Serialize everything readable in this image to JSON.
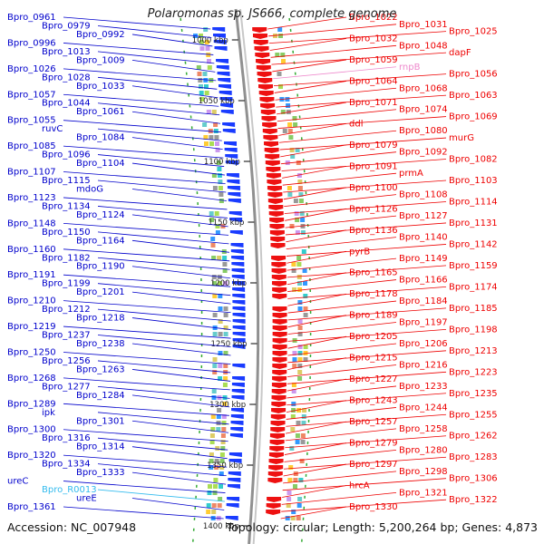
{
  "title": "Polaromonas sp. JS666, complete genome",
  "accession": "Accession: NC_007948",
  "summary": "Topology: circular; Length: 5,200,264 bp; Genes: 4,873",
  "scale_ticks": [
    "1000 kbp",
    "1050 kbp",
    "1100 kbp",
    "1150 kbp",
    "1200 kbp",
    "1250 kbp",
    "1300 kbp",
    "1350 kbp",
    "1400 kbp"
  ],
  "left_labels": [
    {
      "name": "Bpro_0961",
      "color": "#0000cc"
    },
    {
      "name": "Bpro_0979",
      "color": "#0000cc"
    },
    {
      "name": "Bpro_0992",
      "color": "#0000cc"
    },
    {
      "name": "Bpro_0996",
      "color": "#0000cc"
    },
    {
      "name": "Bpro_1013",
      "color": "#0000cc"
    },
    {
      "name": "Bpro_1009",
      "color": "#0000cc"
    },
    {
      "name": "Bpro_1026",
      "color": "#0000cc"
    },
    {
      "name": "Bpro_1028",
      "color": "#0000cc"
    },
    {
      "name": "Bpro_1033",
      "color": "#0000cc"
    },
    {
      "name": "Bpro_1057",
      "color": "#0000cc"
    },
    {
      "name": "Bpro_1044",
      "color": "#0000cc"
    },
    {
      "name": "Bpro_1061",
      "color": "#0000cc"
    },
    {
      "name": "Bpro_1055",
      "color": "#0000cc"
    },
    {
      "name": "ruvC",
      "color": "#0000cc"
    },
    {
      "name": "Bpro_1084",
      "color": "#0000cc"
    },
    {
      "name": "Bpro_1085",
      "color": "#0000cc"
    },
    {
      "name": "Bpro_1096",
      "color": "#0000cc"
    },
    {
      "name": "Bpro_1104",
      "color": "#0000cc"
    },
    {
      "name": "Bpro_1107",
      "color": "#0000cc"
    },
    {
      "name": "Bpro_1115",
      "color": "#0000cc"
    },
    {
      "name": "mdoG",
      "color": "#0000cc"
    },
    {
      "name": "Bpro_1123",
      "color": "#0000cc"
    },
    {
      "name": "Bpro_1134",
      "color": "#0000cc"
    },
    {
      "name": "Bpro_1124",
      "color": "#0000cc"
    },
    {
      "name": "Bpro_1148",
      "color": "#0000cc"
    },
    {
      "name": "Bpro_1150",
      "color": "#0000cc"
    },
    {
      "name": "Bpro_1164",
      "color": "#0000cc"
    },
    {
      "name": "Bpro_1160",
      "color": "#0000cc"
    },
    {
      "name": "Bpro_1182",
      "color": "#0000cc"
    },
    {
      "name": "Bpro_1190",
      "color": "#0000cc"
    },
    {
      "name": "Bpro_1191",
      "color": "#0000cc"
    },
    {
      "name": "Bpro_1199",
      "color": "#0000cc"
    },
    {
      "name": "Bpro_1201",
      "color": "#0000cc"
    },
    {
      "name": "Bpro_1210",
      "color": "#0000cc"
    },
    {
      "name": "Bpro_1212",
      "color": "#0000cc"
    },
    {
      "name": "Bpro_1218",
      "color": "#0000cc"
    },
    {
      "name": "Bpro_1219",
      "color": "#0000cc"
    },
    {
      "name": "Bpro_1237",
      "color": "#0000cc"
    },
    {
      "name": "Bpro_1238",
      "color": "#0000cc"
    },
    {
      "name": "Bpro_1250",
      "color": "#0000cc"
    },
    {
      "name": "Bpro_1256",
      "color": "#0000cc"
    },
    {
      "name": "Bpro_1263",
      "color": "#0000cc"
    },
    {
      "name": "Bpro_1268",
      "color": "#0000cc"
    },
    {
      "name": "Bpro_1277",
      "color": "#0000cc"
    },
    {
      "name": "Bpro_1284",
      "color": "#0000cc"
    },
    {
      "name": "Bpro_1289",
      "color": "#0000cc"
    },
    {
      "name": "ipk",
      "color": "#0000cc"
    },
    {
      "name": "Bpro_1301",
      "color": "#0000cc"
    },
    {
      "name": "Bpro_1300",
      "color": "#0000cc"
    },
    {
      "name": "Bpro_1316",
      "color": "#0000cc"
    },
    {
      "name": "Bpro_1314",
      "color": "#0000cc"
    },
    {
      "name": "Bpro_1320",
      "color": "#0000cc"
    },
    {
      "name": "Bpro_1334",
      "color": "#0000cc"
    },
    {
      "name": "Bpro_1333",
      "color": "#0000cc"
    },
    {
      "name": "ureC",
      "color": "#0000cc"
    },
    {
      "name": "Bpro_R0013",
      "color": "#33bbee"
    },
    {
      "name": "ureE",
      "color": "#0000cc"
    },
    {
      "name": "Bpro_1361",
      "color": "#0000cc"
    }
  ],
  "right_labels": [
    {
      "name": "Bpro_1022",
      "color": "#ee0000"
    },
    {
      "name": "Bpro_1031",
      "color": "#ee0000"
    },
    {
      "name": "Bpro_1025",
      "color": "#ee0000"
    },
    {
      "name": "Bpro_1032",
      "color": "#ee0000"
    },
    {
      "name": "Bpro_1048",
      "color": "#ee0000"
    },
    {
      "name": "dapF",
      "color": "#ee0000"
    },
    {
      "name": "Bpro_1059",
      "color": "#ee0000"
    },
    {
      "name": "rnpB",
      "color": "#ee88cc"
    },
    {
      "name": "Bpro_1056",
      "color": "#ee0000"
    },
    {
      "name": "Bpro_1064",
      "color": "#ee0000"
    },
    {
      "name": "Bpro_1068",
      "color": "#ee0000"
    },
    {
      "name": "Bpro_1063",
      "color": "#ee0000"
    },
    {
      "name": "Bpro_1071",
      "color": "#ee0000"
    },
    {
      "name": "Bpro_1074",
      "color": "#ee0000"
    },
    {
      "name": "Bpro_1069",
      "color": "#ee0000"
    },
    {
      "name": "ddl",
      "color": "#ee0000"
    },
    {
      "name": "Bpro_1080",
      "color": "#ee0000"
    },
    {
      "name": "murG",
      "color": "#ee0000"
    },
    {
      "name": "Bpro_1079",
      "color": "#ee0000"
    },
    {
      "name": "Bpro_1092",
      "color": "#ee0000"
    },
    {
      "name": "Bpro_1082",
      "color": "#ee0000"
    },
    {
      "name": "Bpro_1091",
      "color": "#ee0000"
    },
    {
      "name": "prmA",
      "color": "#ee0000"
    },
    {
      "name": "Bpro_1103",
      "color": "#ee0000"
    },
    {
      "name": "Bpro_1100",
      "color": "#ee0000"
    },
    {
      "name": "Bpro_1108",
      "color": "#ee0000"
    },
    {
      "name": "Bpro_1114",
      "color": "#ee0000"
    },
    {
      "name": "Bpro_1126",
      "color": "#ee0000"
    },
    {
      "name": "Bpro_1127",
      "color": "#ee0000"
    },
    {
      "name": "Bpro_1131",
      "color": "#ee0000"
    },
    {
      "name": "Bpro_1136",
      "color": "#ee0000"
    },
    {
      "name": "Bpro_1140",
      "color": "#ee0000"
    },
    {
      "name": "Bpro_1142",
      "color": "#ee0000"
    },
    {
      "name": "pyrB",
      "color": "#ee0000"
    },
    {
      "name": "Bpro_1149",
      "color": "#ee0000"
    },
    {
      "name": "Bpro_1159",
      "color": "#ee0000"
    },
    {
      "name": "Bpro_1165",
      "color": "#ee0000"
    },
    {
      "name": "Bpro_1166",
      "color": "#ee0000"
    },
    {
      "name": "Bpro_1174",
      "color": "#ee0000"
    },
    {
      "name": "Bpro_1178",
      "color": "#ee0000"
    },
    {
      "name": "Bpro_1184",
      "color": "#ee0000"
    },
    {
      "name": "Bpro_1185",
      "color": "#ee0000"
    },
    {
      "name": "Bpro_1189",
      "color": "#ee0000"
    },
    {
      "name": "Bpro_1197",
      "color": "#ee0000"
    },
    {
      "name": "Bpro_1198",
      "color": "#ee0000"
    },
    {
      "name": "Bpro_1205",
      "color": "#ee0000"
    },
    {
      "name": "Bpro_1206",
      "color": "#ee0000"
    },
    {
      "name": "Bpro_1213",
      "color": "#ee0000"
    },
    {
      "name": "Bpro_1215",
      "color": "#ee0000"
    },
    {
      "name": "Bpro_1216",
      "color": "#ee0000"
    },
    {
      "name": "Bpro_1223",
      "color": "#ee0000"
    },
    {
      "name": "Bpro_1227",
      "color": "#ee0000"
    },
    {
      "name": "Bpro_1233",
      "color": "#ee0000"
    },
    {
      "name": "Bpro_1235",
      "color": "#ee0000"
    },
    {
      "name": "Bpro_1243",
      "color": "#ee0000"
    },
    {
      "name": "Bpro_1244",
      "color": "#ee0000"
    },
    {
      "name": "Bpro_1255",
      "color": "#ee0000"
    },
    {
      "name": "Bpro_1257",
      "color": "#ee0000"
    },
    {
      "name": "Bpro_1258",
      "color": "#ee0000"
    },
    {
      "name": "Bpro_1262",
      "color": "#ee0000"
    },
    {
      "name": "Bpro_1279",
      "color": "#ee0000"
    },
    {
      "name": "Bpro_1280",
      "color": "#ee0000"
    },
    {
      "name": "Bpro_1283",
      "color": "#ee0000"
    },
    {
      "name": "Bpro_1297",
      "color": "#ee0000"
    },
    {
      "name": "Bpro_1298",
      "color": "#ee0000"
    },
    {
      "name": "Bpro_1306",
      "color": "#ee0000"
    },
    {
      "name": "hrcA",
      "color": "#ee0000"
    },
    {
      "name": "Bpro_1321",
      "color": "#ee0000"
    },
    {
      "name": "Bpro_1322",
      "color": "#ee0000"
    },
    {
      "name": "Bpro_1330",
      "color": "#ee0000"
    }
  ]
}
